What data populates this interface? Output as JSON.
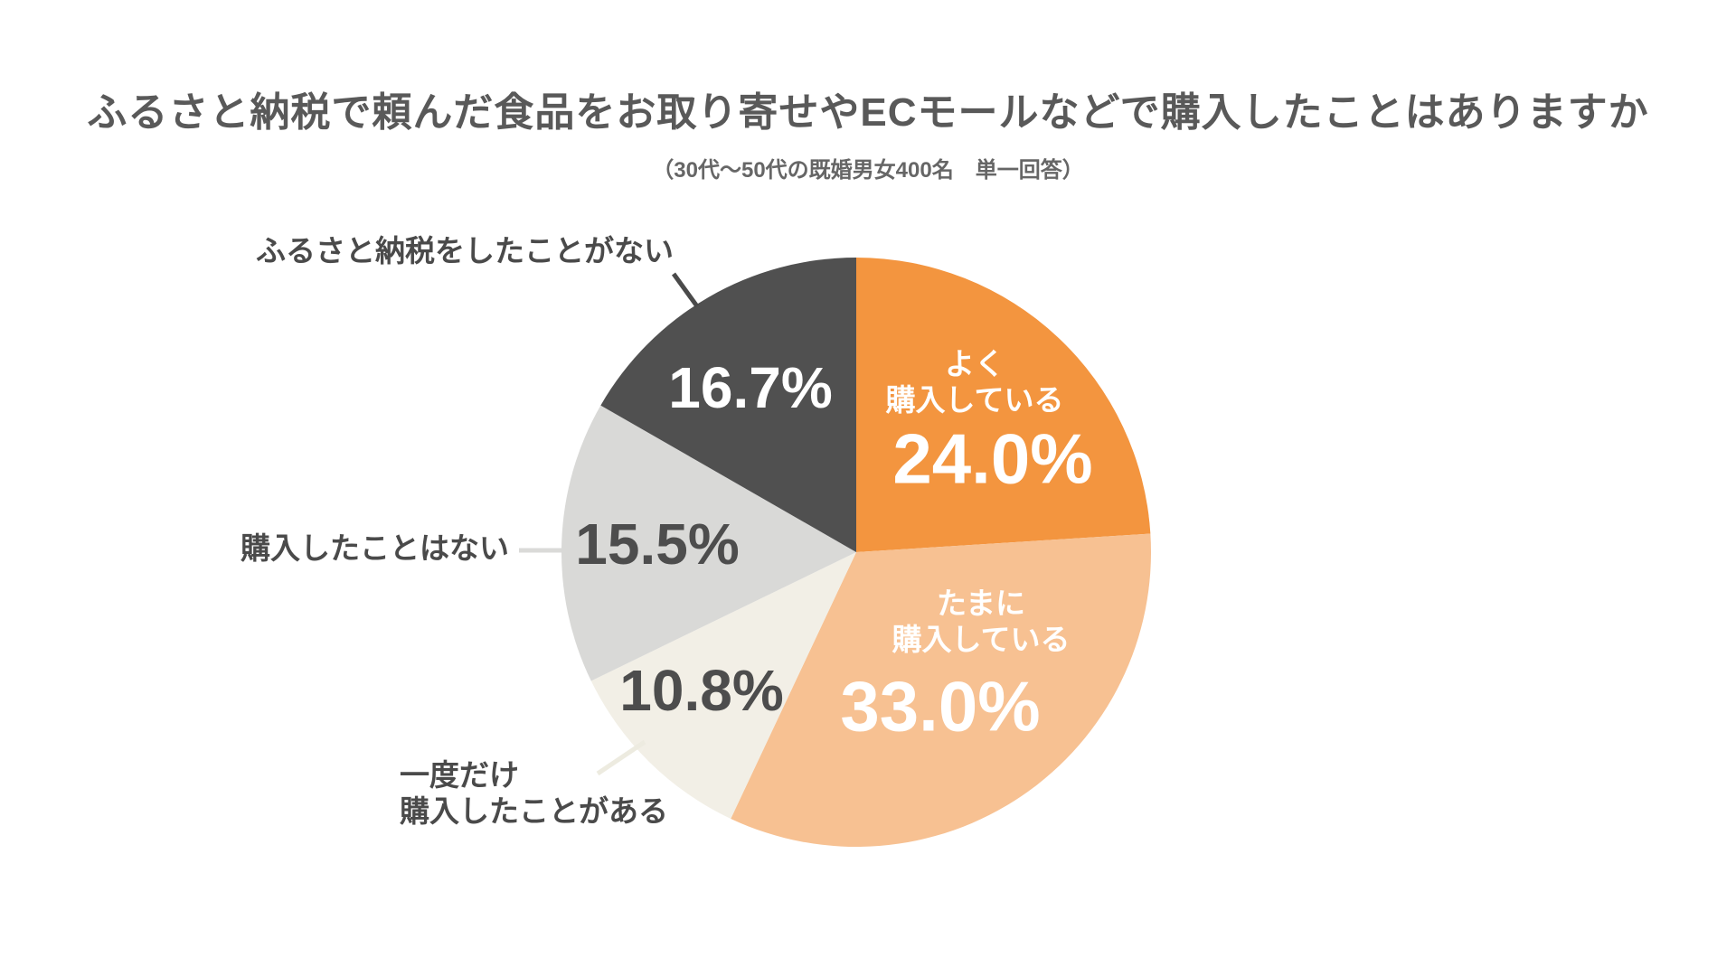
{
  "header": {
    "title": "ふるさと納税で頼んだ食品をお取り寄せやECモールなどで購入したことはありますか",
    "subtitle": "（30代〜50代の既婚男女400名　単一回答）"
  },
  "chart_data": {
    "type": "pie",
    "title": "ふるさと納税で頼んだ食品をお取り寄せやECモールなどで購入したことはありますか",
    "subtitle": "（30代〜50代の既婚男女400名　単一回答）",
    "start_angle": "top",
    "direction": "clockwise",
    "total": 100.0,
    "background": "#ffffff",
    "segments": [
      {
        "label": "よく購入している",
        "label_lines": [
          "よく",
          "購入している"
        ],
        "value": 24.0,
        "pct_label": "24.0%",
        "color": "#F3953F",
        "label_placement": "inside",
        "text_color": "#ffffff"
      },
      {
        "label": "たまに購入している",
        "label_lines": [
          "たまに",
          "購入している"
        ],
        "value": 33.0,
        "pct_label": "33.0%",
        "color": "#F7C192",
        "label_placement": "inside",
        "text_color": "#ffffff"
      },
      {
        "label": "一度だけ購入したことがある",
        "label_lines": [
          "一度だけ",
          "購入したことがある"
        ],
        "value": 10.8,
        "pct_label": "10.8%",
        "color": "#F2EFE6",
        "label_placement": "outside",
        "text_color": "#4d4d4d",
        "leader_color": "#EDEBE0"
      },
      {
        "label": "購入したことはない",
        "label_lines": [
          "購入したことはない"
        ],
        "value": 15.5,
        "pct_label": "15.5%",
        "color": "#D9D9D7",
        "label_placement": "outside",
        "text_color": "#4d4d4d",
        "leader_color": "#DADAD8"
      },
      {
        "label": "ふるさと納税をしたことがない",
        "label_lines": [
          "ふるさと納税をしたことがない"
        ],
        "value": 16.7,
        "pct_label": "16.7%",
        "color": "#505050",
        "label_placement": "outside-pct-inside",
        "text_color": "#ffffff",
        "leader_color": "#4A4A4A"
      }
    ]
  }
}
